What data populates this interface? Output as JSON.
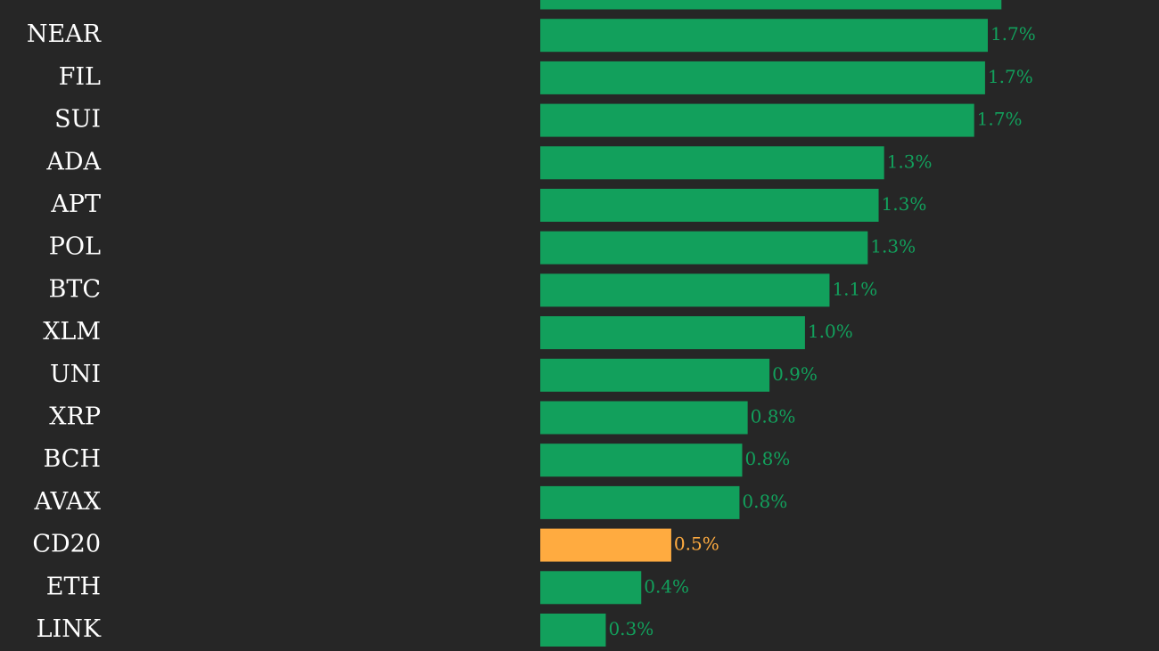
{
  "chart_data": {
    "type": "hbar",
    "categories": [
      null,
      "NEAR",
      "FIL",
      "SUI",
      "ADA",
      "APT",
      "POL",
      "BTC",
      "XLM",
      "UNI",
      "XRP",
      "BCH",
      "AVAX",
      "CD20",
      "ETH",
      "LINK"
    ],
    "values": [
      1.75,
      1.7,
      1.69,
      1.65,
      1.32,
      1.3,
      1.26,
      1.12,
      1.03,
      0.9,
      0.82,
      0.8,
      0.79,
      0.54,
      0.43,
      0.3
    ],
    "value_labels": [
      null,
      "1.7%",
      "1.7%",
      "1.7%",
      "1.3%",
      "1.3%",
      "1.3%",
      "1.1%",
      "1.0%",
      "0.9%",
      "0.8%",
      "0.8%",
      "0.8%",
      "0.5%",
      "0.4%",
      "0.3%"
    ],
    "colors": [
      "#12a05c",
      "#12a05c",
      "#12a05c",
      "#12a05c",
      "#12a05c",
      "#12a05c",
      "#12a05c",
      "#12a05c",
      "#12a05c",
      "#12a05c",
      "#12a05c",
      "#12a05c",
      "#12a05c",
      "#ffab40",
      "#12a05c",
      "#12a05c"
    ],
    "xlim": [
      0.06,
      2.2
    ]
  }
}
